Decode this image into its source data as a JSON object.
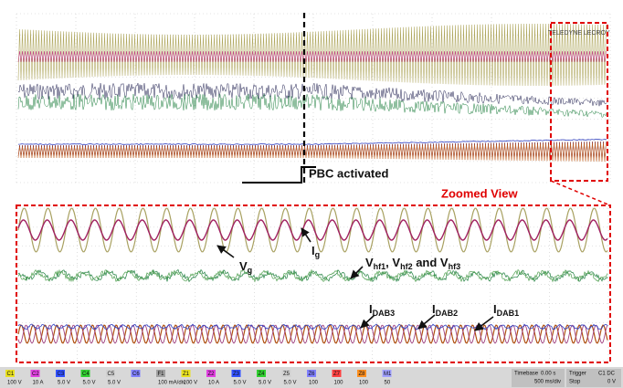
{
  "logo": "TELEDYNE LECROY",
  "annotation": "PBC activated",
  "zoom_title": "Zoomed View",
  "labels": [
    {
      "segments": [
        {
          "text": "V"
        },
        {
          "sub": "g"
        }
      ]
    },
    {
      "segments": [
        {
          "text": "I"
        },
        {
          "sub": "g"
        }
      ]
    },
    {
      "segments": [
        {
          "text": "V"
        },
        {
          "sub": "hf1"
        },
        {
          "text": ", V"
        },
        {
          "sub": "hf2"
        },
        {
          "text": " and V"
        },
        {
          "sub": "hf3"
        }
      ]
    },
    {
      "segments": [
        {
          "text": "I"
        },
        {
          "sub": "DAB3"
        }
      ]
    },
    {
      "segments": [
        {
          "text": "I"
        },
        {
          "sub": "DAB2"
        }
      ]
    },
    {
      "segments": [
        {
          "text": "I"
        },
        {
          "sub": "DAB1"
        }
      ]
    }
  ],
  "channels": [
    {
      "id": "C1",
      "scale": "100 V",
      "color": "#e8e020"
    },
    {
      "id": "C2",
      "scale": "10 A",
      "color": "#e040e0"
    },
    {
      "id": "C3",
      "scale": "5.0 V",
      "color": "#3050ff"
    },
    {
      "id": "C4",
      "scale": "5.0 V",
      "color": "#30d030"
    },
    {
      "id": "C5",
      "scale": "5.0 V",
      "color": "#d0d0d0"
    },
    {
      "id": "C6",
      "scale": "",
      "color": "#8080ff"
    },
    {
      "id": "F1",
      "scale": "100 mA/div",
      "color": "#a0a0a0"
    },
    {
      "id": "Z1",
      "scale": "100 V",
      "color": "#e8e020"
    },
    {
      "id": "Z2",
      "scale": "10 A",
      "color": "#e040e0"
    },
    {
      "id": "Z3",
      "scale": "5.0 V",
      "color": "#3050ff"
    },
    {
      "id": "Z4",
      "scale": "5.0 V",
      "color": "#30d030"
    },
    {
      "id": "Z5",
      "scale": "5.0 V",
      "color": "#d0d0d0"
    },
    {
      "id": "Z6",
      "scale": "100",
      "color": "#8080ff"
    },
    {
      "id": "Z7",
      "scale": "100",
      "color": "#ff4040"
    },
    {
      "id": "Z8",
      "scale": "100",
      "color": "#ff9020"
    },
    {
      "id": "M1",
      "scale": "50",
      "color": "#a0a0ff"
    }
  ],
  "timebase": {
    "label": "Timebase",
    "value": "0.00 s",
    "div": "500 ms/div"
  },
  "trigger": {
    "label": "Trigger",
    "value": "C1 DC",
    "mode": "Stop",
    "level": "0 V"
  }
}
